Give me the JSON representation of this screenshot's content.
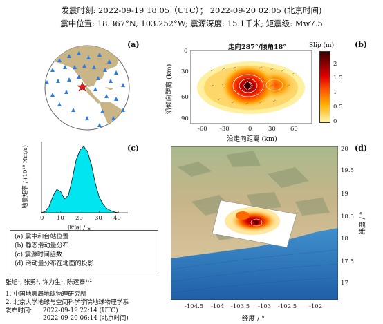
{
  "header": {
    "line1": "发震时刻: 2022-09-19 18:05（UTC）；  2022-09-20  02:05 (北京时间)",
    "line2": "震中位置: 18.367°N, 103.252°W;  震源深度: 15.1千米; 矩震级: Mw7.5"
  },
  "panels": {
    "a": {
      "label": "(a)"
    },
    "b": {
      "label": "(b)",
      "title": "走向287°/倾角18°",
      "xlabel": "沿走向距离 (km)",
      "ylabel": "沿倾向距离 (km)",
      "xticks": [
        "-60",
        "-30",
        "0",
        "30",
        "60"
      ],
      "yticks": [
        "0",
        "30",
        "60",
        "90"
      ],
      "colorbar_title": "Slip (m)",
      "colorbar_ticks": [
        "2",
        "1.5",
        "1",
        "0.5",
        "0"
      ]
    },
    "c": {
      "label": "(c)",
      "xlabel": "时间 / s",
      "ylabel": "地震矩率 / (10¹⁹ Nm/s)",
      "xticks": [
        "0",
        "10",
        "20",
        "30",
        "40"
      ]
    },
    "d": {
      "label": "(d)",
      "xlabel": "经度 / °",
      "ylabel": "纬度 / °",
      "xticks": [
        "-104.5",
        "-104",
        "-103.5",
        "-103",
        "-102.5",
        "-102"
      ],
      "yticks": [
        "20",
        "19.5",
        "19",
        "18.5",
        "18",
        "17.5",
        "17"
      ]
    }
  },
  "legend": [
    "(a) 震中和台站位置",
    "(b) 静态滑动量分布",
    "(c) 震源时间函数",
    "(d) 滑动量分布在地面的投影"
  ],
  "credits": {
    "authors": "张旭¹, 张勇², 许力生¹, 陈运泰¹˒²",
    "aff1": "1. 中国地震局地球物理研究所",
    "aff2": "2. 北京大学地球与空间科学学院地球物理学系",
    "pub_label": "发布时间:",
    "pub_utc": "2022-09-19  22:14 (UTC)",
    "pub_bj": "2022-09-20  06:14 (北京时间)"
  },
  "colors": {
    "stf_fill": "#00E5F0",
    "stations": "#2E7CE0",
    "epicenter": "#D81B1B"
  },
  "chart_data": {
    "type": "area",
    "title": "",
    "xlabel": "时间 / s",
    "ylabel": "地震矩率 / (10¹⁹ Nm/s)",
    "xlim": [
      0,
      45
    ],
    "x": [
      0,
      2,
      4,
      6,
      8,
      10,
      12,
      14,
      16,
      18,
      20,
      22,
      24,
      26,
      28,
      30,
      32,
      34,
      36,
      38,
      40
    ],
    "values": [
      0,
      0.2,
      0.9,
      2.3,
      3.2,
      2.9,
      1.9,
      2.4,
      4.6,
      7.2,
      8.6,
      9.1,
      8.4,
      6.6,
      4.1,
      2.2,
      1.2,
      0.6,
      0.3,
      0.1,
      0
    ]
  }
}
